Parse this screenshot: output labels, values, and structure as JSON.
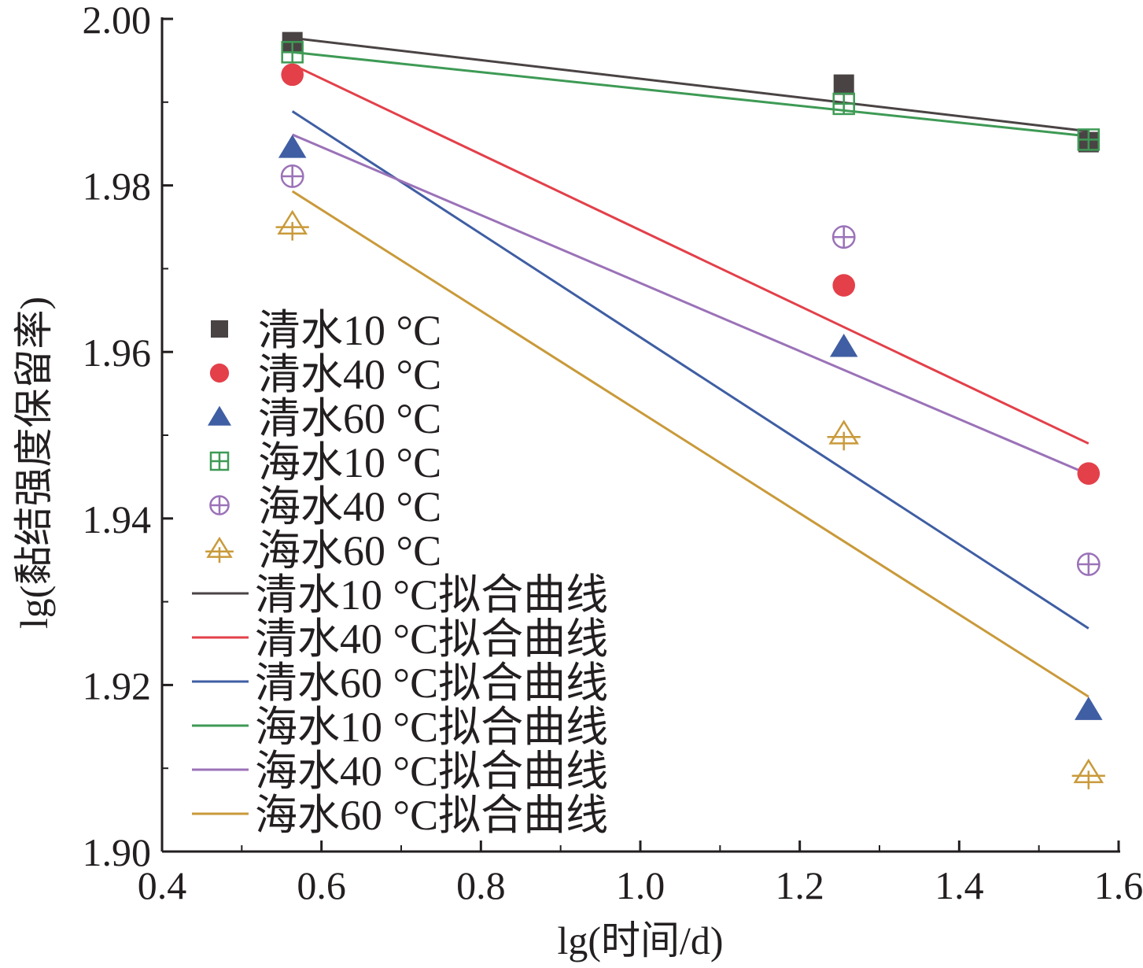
{
  "chart_data": {
    "type": "scatter",
    "title": "",
    "xlabel": "lg(时间/d)",
    "ylabel": "lg(黏结强度保留率)",
    "xlim": [
      0.4,
      1.6
    ],
    "ylim": [
      1.9,
      2.0
    ],
    "xticks": [
      "0.4",
      "0.6",
      "0.8",
      "1.0",
      "1.2",
      "1.4",
      "1.6"
    ],
    "yticks": [
      "1.90",
      "1.92",
      "1.94",
      "1.96",
      "1.98",
      "2.00"
    ],
    "x": [
      0.5635,
      1.2553,
      1.5623
    ],
    "grid": false,
    "legend_position": "left",
    "series": [
      {
        "name": "清水10 °C",
        "kind": "points",
        "marker": "square",
        "color": "#4a4344",
        "values": [
          1.9972,
          1.9921,
          1.9852
        ]
      },
      {
        "name": "清水40 °C",
        "kind": "points",
        "marker": "circle",
        "color": "#e3404a",
        "values": [
          1.9933,
          1.968,
          1.9454
        ]
      },
      {
        "name": "清水60 °C",
        "kind": "points",
        "marker": "triangle",
        "color": "#3f5ea3",
        "values": [
          1.9845,
          1.9606,
          1.917
        ]
      },
      {
        "name": "海水10 °C",
        "kind": "points",
        "marker": "square-cross",
        "color": "#3e9a55",
        "values": [
          1.996,
          1.9898,
          1.9855
        ]
      },
      {
        "name": "海水40 °C",
        "kind": "points",
        "marker": "circle-plus",
        "color": "#9b72b8",
        "values": [
          1.9811,
          1.9738,
          1.9345
        ]
      },
      {
        "name": "海水60 °C",
        "kind": "points",
        "marker": "triangle-plus",
        "color": "#c99a3a",
        "values": [
          1.9753,
          1.9501,
          1.9094
        ]
      },
      {
        "name": "清水10 °C拟合曲线",
        "kind": "line",
        "color": "#4a4344",
        "x": [
          0.5635,
          1.5623
        ],
        "values": [
          1.9977,
          1.9865
        ]
      },
      {
        "name": "清水40 °C拟合曲线",
        "kind": "line",
        "color": "#e3404a",
        "x": [
          0.5635,
          1.5623
        ],
        "values": [
          1.9945,
          1.949
        ]
      },
      {
        "name": "清水60 °C拟合曲线",
        "kind": "line",
        "color": "#3f5ea3",
        "x": [
          0.5635,
          1.5623
        ],
        "values": [
          1.9889,
          1.9268
        ]
      },
      {
        "name": "海水10 °C拟合曲线",
        "kind": "line",
        "color": "#3e9a55",
        "x": [
          0.5635,
          1.5623
        ],
        "values": [
          1.996,
          1.9859
        ]
      },
      {
        "name": "海水40 °C拟合曲线",
        "kind": "line",
        "color": "#9b72b8",
        "x": [
          0.5635,
          1.5623
        ],
        "values": [
          1.9861,
          1.9453
        ]
      },
      {
        "name": "海水60 °C拟合曲线",
        "kind": "line",
        "color": "#c99a3a",
        "x": [
          0.5635,
          1.5623
        ],
        "values": [
          1.9793,
          1.9186
        ]
      }
    ]
  }
}
